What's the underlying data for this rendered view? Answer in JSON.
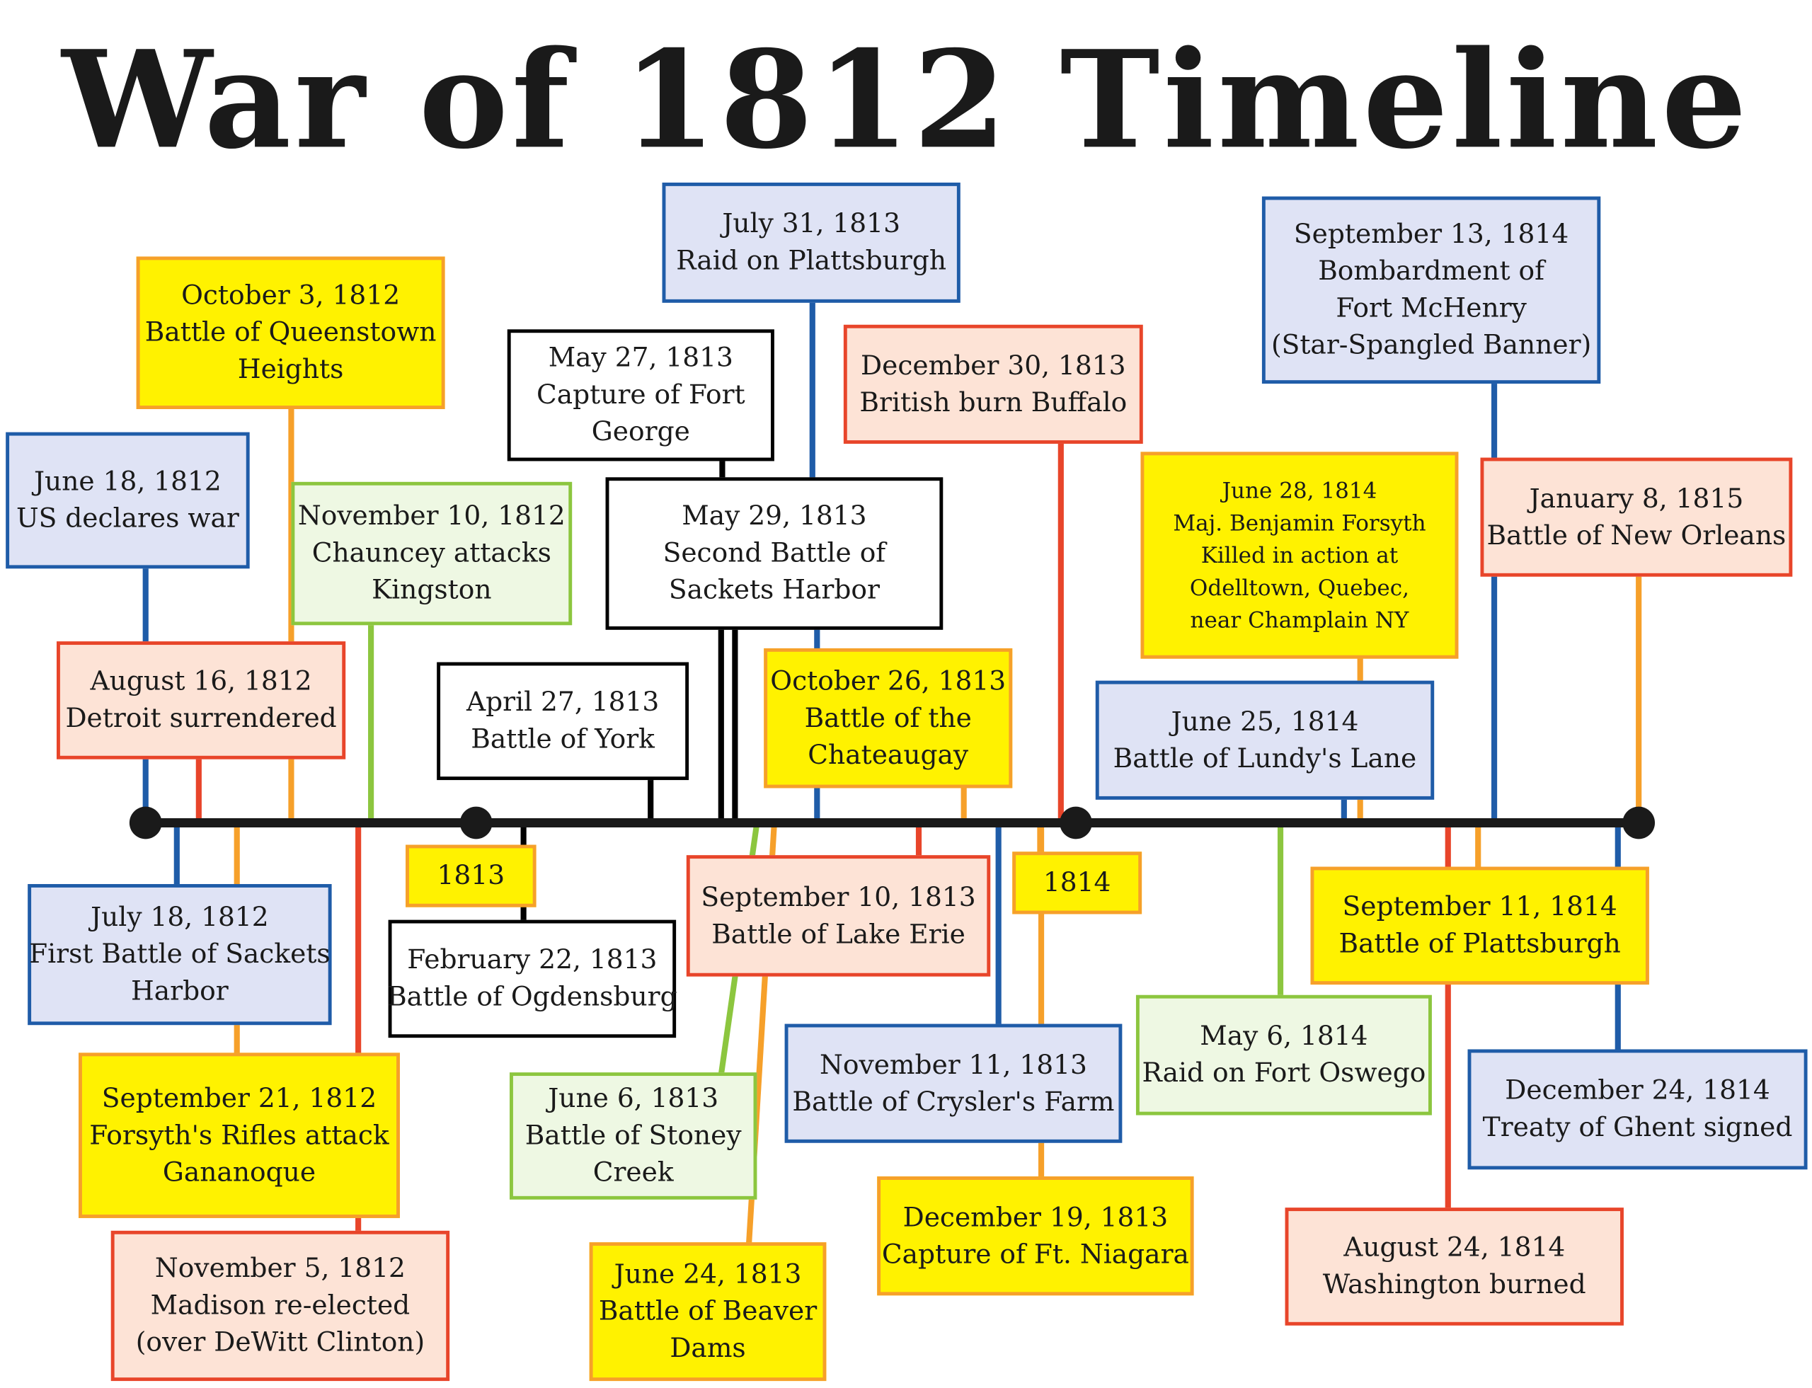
{
  "title": "War of 1812 Timeline",
  "year_labels": [
    "1813",
    "1814"
  ],
  "colors": {
    "axis": "#1a1a1a",
    "blue": "#1f5ca8",
    "orange": "#f6a02a",
    "red": "#e8452a",
    "green": "#8cc63f",
    "black": "#000000",
    "yellow_fill": "#fff200",
    "blue_fill": "#dfe3f5",
    "peach_fill": "#fde3d6",
    "green_fill": "#eef8e3"
  },
  "events": [
    {
      "id": "june-18-1812",
      "lines": [
        "June 18, 1812",
        "US declares war"
      ],
      "style": "blue"
    },
    {
      "id": "october-3-1812",
      "lines": [
        "October 3, 1812",
        "Battle of Queenstown",
        "Heights"
      ],
      "style": "yellow"
    },
    {
      "id": "august-16-1812",
      "lines": [
        "August 16, 1812",
        "Detroit surrendered"
      ],
      "style": "peach"
    },
    {
      "id": "november-10-1812",
      "lines": [
        "November 10, 1812",
        "Chauncey attacks",
        "Kingston"
      ],
      "style": "green"
    },
    {
      "id": "july-18-1812",
      "lines": [
        "July 18, 1812",
        "First Battle of Sackets",
        "Harbor"
      ],
      "style": "blue"
    },
    {
      "id": "september-21-1812",
      "lines": [
        "September 21, 1812",
        "Forsyth's Rifles attack",
        "Gananoque"
      ],
      "style": "yellow"
    },
    {
      "id": "november-5-1812",
      "lines": [
        "November 5, 1812",
        "Madison re-elected",
        "(over DeWitt Clinton)"
      ],
      "style": "peach"
    },
    {
      "id": "may-27-1813",
      "lines": [
        "May 27, 1813",
        "Capture of Fort",
        "George"
      ],
      "style": "white"
    },
    {
      "id": "july-31-1813",
      "lines": [
        "July 31, 1813",
        "Raid on Plattsburgh"
      ],
      "style": "blue"
    },
    {
      "id": "may-29-1813",
      "lines": [
        "May 29, 1813",
        "Second Battle of",
        "Sackets Harbor"
      ],
      "style": "white"
    },
    {
      "id": "april-27-1813",
      "lines": [
        "April 27, 1813",
        "Battle of York"
      ],
      "style": "white"
    },
    {
      "id": "october-26-1813",
      "lines": [
        "October 26, 1813",
        "Battle of the",
        "Chateaugay"
      ],
      "style": "yellow"
    },
    {
      "id": "december-30-1813",
      "lines": [
        "December 30, 1813",
        "British burn Buffalo"
      ],
      "style": "peach"
    },
    {
      "id": "february-22-1813",
      "lines": [
        "February 22, 1813",
        "Battle of Ogdensburg"
      ],
      "style": "white"
    },
    {
      "id": "september-10-1813",
      "lines": [
        "September 10, 1813",
        "Battle of Lake Erie"
      ],
      "style": "peach"
    },
    {
      "id": "june-6-1813",
      "lines": [
        "June 6, 1813",
        "Battle of Stoney",
        "Creek"
      ],
      "style": "green"
    },
    {
      "id": "june-24-1813",
      "lines": [
        "June 24, 1813",
        "Battle of Beaver",
        "Dams"
      ],
      "style": "yellow"
    },
    {
      "id": "november-11-1813",
      "lines": [
        "November 11, 1813",
        "Battle of Crysler's Farm"
      ],
      "style": "blue"
    },
    {
      "id": "december-19-1813",
      "lines": [
        "December 19, 1813",
        "Capture of Ft. Niagara"
      ],
      "style": "yellow"
    },
    {
      "id": "september-13-1814",
      "lines": [
        "September 13, 1814",
        "Bombardment of",
        "Fort McHenry",
        "(Star-Spangled Banner)"
      ],
      "style": "blue"
    },
    {
      "id": "june-28-1814",
      "lines": [
        "June 28, 1814",
        "Maj. Benjamin Forsyth",
        "Killed in action at",
        "Odelltown, Quebec,",
        "near Champlain NY"
      ],
      "style": "yellow"
    },
    {
      "id": "january-8-1815",
      "lines": [
        "January 8, 1815",
        "Battle of New Orleans"
      ],
      "style": "peach"
    },
    {
      "id": "june-25-1814",
      "lines": [
        "June 25, 1814",
        "Battle of Lundy's Lane"
      ],
      "style": "blue"
    },
    {
      "id": "september-11-1814",
      "lines": [
        "September 11, 1814",
        "Battle of Plattsburgh"
      ],
      "style": "yellow"
    },
    {
      "id": "may-6-1814",
      "lines": [
        "May 6, 1814",
        "Raid on Fort Oswego"
      ],
      "style": "green"
    },
    {
      "id": "december-24-1814",
      "lines": [
        "December 24, 1814",
        "Treaty of Ghent signed"
      ],
      "style": "blue"
    },
    {
      "id": "august-24-1814",
      "lines": [
        "August 24, 1814",
        "Washington burned"
      ],
      "style": "peach"
    }
  ]
}
